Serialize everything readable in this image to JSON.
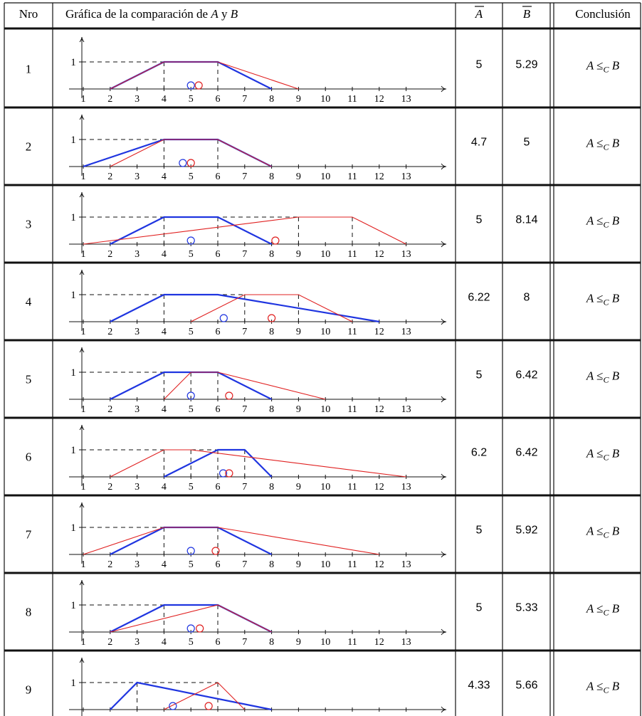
{
  "header": {
    "col_nro": "Nro",
    "col_graph_prefix": "Gráfica de la comparación de ",
    "col_graph_a": "A",
    "col_graph_mid": " y ",
    "col_graph_b": "B",
    "col_abar": "A",
    "col_bbar": "B",
    "col_conclusion": "Conclusión"
  },
  "axis": {
    "x_ticks": [
      "1",
      "2",
      "3",
      "4",
      "5",
      "6",
      "7",
      "8",
      "9",
      "10",
      "11",
      "12",
      "13"
    ],
    "y_tick": "1"
  },
  "colors": {
    "A": "#1f35e0",
    "B": "#e02020",
    "overlap": "#8a2a8a",
    "text": "#111111"
  },
  "rows": [
    {
      "nro": "1",
      "A": [
        2,
        4,
        6,
        8
      ],
      "B": [
        2,
        4,
        6,
        9
      ],
      "abar": "5",
      "bbar": "5.29",
      "centroid_a": 5,
      "centroid_b": 5.29,
      "conclusion": "A ≤C B",
      "dashes": [
        4,
        6
      ]
    },
    {
      "nro": "2",
      "A": [
        1,
        4,
        6,
        8
      ],
      "B": [
        2,
        4,
        6,
        8
      ],
      "abar": "4.7",
      "bbar": "5",
      "centroid_a": 4.7,
      "centroid_b": 5,
      "conclusion": "A ≤C B",
      "dashes": [
        4,
        6
      ]
    },
    {
      "nro": "3",
      "A": [
        2,
        4,
        6,
        8
      ],
      "B": [
        1,
        9,
        11,
        13
      ],
      "abar": "5",
      "bbar": "8.14",
      "centroid_a": 5,
      "centroid_b": 8.14,
      "conclusion": "A ≤C B",
      "dashes": [
        4,
        6,
        9,
        11
      ]
    },
    {
      "nro": "4",
      "A": [
        2,
        4,
        6,
        12
      ],
      "B": [
        5,
        7,
        9,
        11
      ],
      "abar": "6.22",
      "bbar": "8",
      "centroid_a": 6.22,
      "centroid_b": 8,
      "conclusion": "A ≤C B",
      "dashes": [
        4,
        7,
        9
      ]
    },
    {
      "nro": "5",
      "A": [
        2,
        4,
        6,
        8
      ],
      "B": [
        4,
        5,
        6,
        10
      ],
      "abar": "5",
      "bbar": "6.42",
      "centroid_a": 5,
      "centroid_b": 6.42,
      "conclusion": "A ≤C B",
      "dashes": [
        4,
        5,
        6
      ]
    },
    {
      "nro": "6",
      "A": [
        4,
        6,
        7,
        8
      ],
      "B": [
        2,
        4,
        5,
        13
      ],
      "abar": "6.2",
      "bbar": "6.42",
      "centroid_a": 6.2,
      "centroid_b": 6.42,
      "conclusion": "A ≤C B",
      "dashes": [
        4,
        5,
        6,
        7
      ]
    },
    {
      "nro": "7",
      "A": [
        2,
        4,
        6,
        8
      ],
      "B": [
        1,
        4,
        6,
        12
      ],
      "abar": "5",
      "bbar": "5.92",
      "centroid_a": 5,
      "centroid_b": 5.92,
      "conclusion": "A ≤C B",
      "dashes": [
        4,
        6
      ]
    },
    {
      "nro": "8",
      "A": [
        2,
        4,
        6,
        8
      ],
      "B": [
        2,
        6,
        6,
        8
      ],
      "abar": "5",
      "bbar": "5.33",
      "centroid_a": 5,
      "centroid_b": 5.33,
      "conclusion": "A ≤C B",
      "dashes": [
        4,
        6
      ]
    },
    {
      "nro": "9",
      "A": [
        2,
        3,
        3,
        8
      ],
      "B": [
        4,
        6,
        6,
        7
      ],
      "abar": "4.33",
      "bbar": "5.66",
      "centroid_a": 4.33,
      "centroid_b": 5.66,
      "conclusion": "A ≤C B",
      "dashes": [
        3,
        6
      ]
    }
  ]
}
